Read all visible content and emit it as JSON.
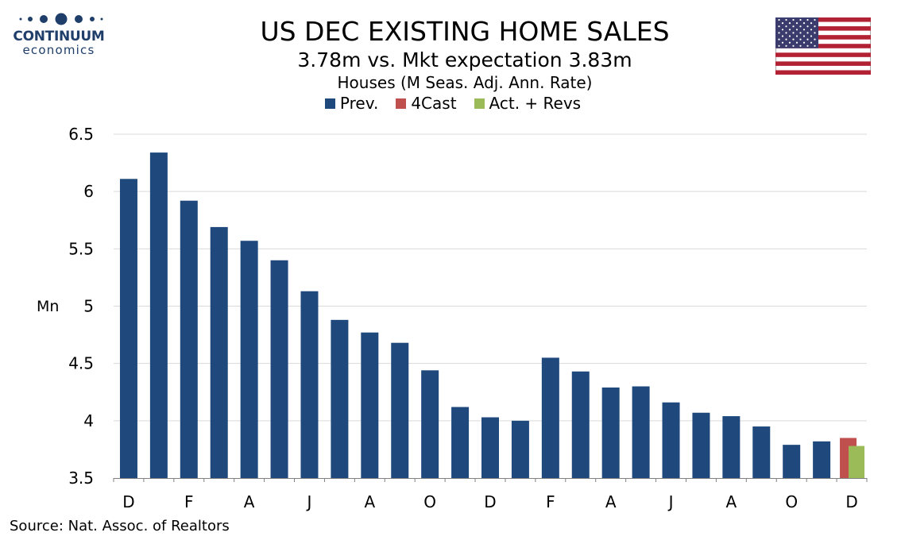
{
  "logo": {
    "name": "CONTINUUM",
    "sub": "economics"
  },
  "title": "US DEC EXISTING HOME SALES",
  "subtitle": "3.78m vs. Mkt expectation 3.83m",
  "subtitle2": "Houses (M Seas. Adj. Ann. Rate)",
  "source": "Source: Nat. Assoc. of Realtors",
  "colors": {
    "prev": "#1f497d",
    "forecast": "#c0504d",
    "actual": "#9bbb59",
    "grid": "#d9d9d9",
    "axis": "#808080",
    "logo": "#1f3e6a"
  },
  "chart_data": {
    "type": "bar",
    "title": "US DEC EXISTING HOME SALES",
    "ylabel": "Mn",
    "ylim": [
      3.5,
      6.5
    ],
    "yticks": [
      3.5,
      4,
      4.5,
      5,
      5.5,
      6,
      6.5
    ],
    "ytick_labels": [
      "3.5",
      "4",
      "4.5",
      "5",
      "5.5",
      "6",
      "6.5"
    ],
    "grid": true,
    "legend_placement": "top-center",
    "xtick_labels": [
      "D",
      "F",
      "A",
      "J",
      "A",
      "O",
      "D",
      "F",
      "A",
      "J",
      "A",
      "O",
      "D"
    ],
    "legend": [
      {
        "name": "Prev.",
        "color": "#1f497d"
      },
      {
        "name": "4Cast",
        "color": "#c0504d"
      },
      {
        "name": "Act. + Revs",
        "color": "#9bbb59"
      }
    ],
    "series": [
      {
        "name": "Prev.",
        "values": [
          6.11,
          6.34,
          5.92,
          5.69,
          5.57,
          5.4,
          5.13,
          4.88,
          4.77,
          4.68,
          4.44,
          4.12,
          4.03,
          4.0,
          4.55,
          4.43,
          4.29,
          4.3,
          4.16,
          4.07,
          4.04,
          3.95,
          3.79,
          3.82,
          null
        ]
      },
      {
        "name": "4Cast",
        "values": [
          null,
          null,
          null,
          null,
          null,
          null,
          null,
          null,
          null,
          null,
          null,
          null,
          null,
          null,
          null,
          null,
          null,
          null,
          null,
          null,
          null,
          null,
          null,
          null,
          3.85
        ]
      },
      {
        "name": "Act. + Revs",
        "values": [
          null,
          null,
          null,
          null,
          null,
          null,
          null,
          null,
          null,
          null,
          null,
          null,
          null,
          null,
          null,
          null,
          null,
          null,
          null,
          null,
          null,
          null,
          null,
          null,
          3.78
        ]
      }
    ]
  }
}
